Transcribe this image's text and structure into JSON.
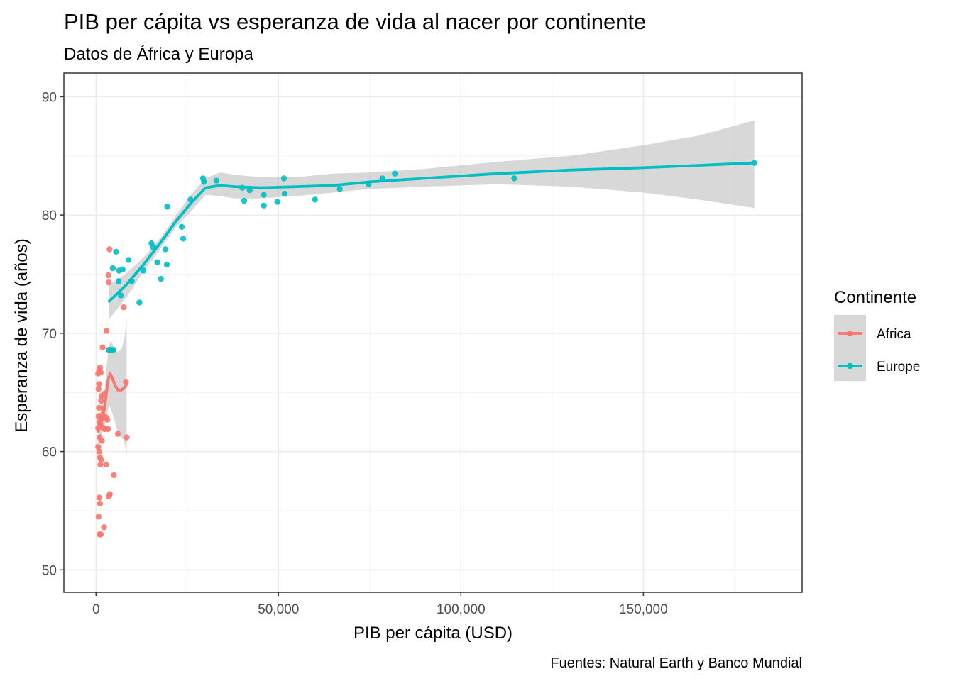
{
  "chart_data": {
    "type": "scatter",
    "title": "PIB per cápita vs esperanza de vida al nacer por continente",
    "subtitle": "Datos de África y Europa",
    "caption": "Fuentes: Natural Earth y Banco Mundial",
    "xlabel": "PIB per cápita  (USD)",
    "ylabel": "Esperanza de vida (años)",
    "xlim": [
      -8800,
      193500
    ],
    "ylim": [
      48.1,
      92
    ],
    "x_ticks": [
      0,
      50000,
      100000,
      150000
    ],
    "x_tick_labels": [
      "0",
      "50,000",
      "100,000",
      "150,000"
    ],
    "y_ticks": [
      50,
      60,
      70,
      80,
      90
    ],
    "y_tick_labels": [
      "50",
      "60",
      "70",
      "80",
      "90"
    ],
    "grid": true,
    "legend": {
      "title": "Continente",
      "placement": "right"
    },
    "colors": {
      "Africa": "#F8766D",
      "Europe": "#00BFC4",
      "band": "#bebebe"
    },
    "series": [
      {
        "name": "Africa",
        "points": [
          [
            700,
            54.5
          ],
          [
            900,
            56.1
          ],
          [
            1000,
            53
          ],
          [
            1100,
            55.6
          ],
          [
            1300,
            53
          ],
          [
            2200,
            53.6
          ],
          [
            2800,
            58.9
          ],
          [
            3500,
            56.2
          ],
          [
            3800,
            56.4
          ],
          [
            4900,
            58
          ],
          [
            600,
            60.4
          ],
          [
            900,
            60
          ],
          [
            1100,
            59.5
          ],
          [
            1200,
            58.9
          ],
          [
            1400,
            59.3
          ],
          [
            1600,
            60.9
          ],
          [
            600,
            62
          ],
          [
            700,
            63
          ],
          [
            800,
            63.7
          ],
          [
            900,
            62.5
          ],
          [
            1000,
            61.2
          ],
          [
            1200,
            62.3
          ],
          [
            1500,
            62.8
          ],
          [
            1800,
            63.1
          ],
          [
            2000,
            62
          ],
          [
            2400,
            61.9
          ],
          [
            2700,
            62.9
          ],
          [
            3100,
            62.7
          ],
          [
            3300,
            61.9
          ],
          [
            1400,
            64.3
          ],
          [
            1500,
            64.7
          ],
          [
            2000,
            63.6
          ],
          [
            2300,
            64.9
          ],
          [
            700,
            65.3
          ],
          [
            800,
            65.7
          ],
          [
            600,
            66.6
          ],
          [
            900,
            66.9
          ],
          [
            1100,
            67.1
          ],
          [
            1300,
            66.7
          ],
          [
            1800,
            68.8
          ],
          [
            2900,
            70.2
          ],
          [
            3500,
            68.6
          ],
          [
            3500,
            74.3
          ],
          [
            3400,
            74.9
          ],
          [
            3700,
            77.1
          ],
          [
            7600,
            72.2
          ],
          [
            8200,
            65.9
          ],
          [
            6000,
            61.5
          ],
          [
            8400,
            61.2
          ]
        ],
        "smooth": {
          "fit": [
            [
              600,
              61.7
            ],
            [
              1200,
              62.2
            ],
            [
              1800,
              62.9
            ],
            [
              2400,
              63.8
            ],
            [
              3000,
              65.3
            ],
            [
              3500,
              66.3
            ],
            [
              3900,
              66.6
            ],
            [
              4500,
              66.2
            ],
            [
              5200,
              65.6
            ],
            [
              6000,
              65.2
            ],
            [
              7000,
              65.2
            ],
            [
              8000,
              65.5
            ],
            [
              8400,
              65.7
            ]
          ],
          "lower": [
            [
              600,
              59.8
            ],
            [
              1200,
              61.2
            ],
            [
              1800,
              61.6
            ],
            [
              2400,
              62.2
            ],
            [
              3000,
              63.1
            ],
            [
              3500,
              63.8
            ],
            [
              4000,
              63.7
            ],
            [
              4500,
              63.2
            ],
            [
              5200,
              62.5
            ],
            [
              6000,
              61.6
            ],
            [
              6800,
              61.2
            ],
            [
              7600,
              61
            ],
            [
              8400,
              59.8
            ]
          ],
          "upper": [
            [
              600,
              63.4
            ],
            [
              1200,
              63.2
            ],
            [
              1800,
              64.2
            ],
            [
              2400,
              65.4
            ],
            [
              3000,
              67.5
            ],
            [
              3500,
              68.8
            ],
            [
              4000,
              69.4
            ],
            [
              4500,
              69.1
            ],
            [
              5200,
              68.6
            ],
            [
              6000,
              68.4
            ],
            [
              7000,
              68.7
            ],
            [
              7800,
              69.6
            ],
            [
              8400,
              71.2
            ]
          ]
        }
      },
      {
        "name": "Europe",
        "points": [
          [
            3600,
            68.6
          ],
          [
            4200,
            68.6
          ],
          [
            4800,
            68.6
          ],
          [
            4600,
            75.5
          ],
          [
            5500,
            76.9
          ],
          [
            6200,
            74.4
          ],
          [
            6300,
            75.3
          ],
          [
            6800,
            73.2
          ],
          [
            7300,
            75.4
          ],
          [
            8900,
            76.2
          ],
          [
            9800,
            74.4
          ],
          [
            11900,
            72.6
          ],
          [
            13000,
            75.3
          ],
          [
            15200,
            77.6
          ],
          [
            15600,
            77.3
          ],
          [
            16800,
            76
          ],
          [
            17800,
            74.6
          ],
          [
            19000,
            77.1
          ],
          [
            19400,
            75.8
          ],
          [
            19500,
            80.7
          ],
          [
            23900,
            78
          ],
          [
            23500,
            79
          ],
          [
            25900,
            81.3
          ],
          [
            29300,
            83.1
          ],
          [
            29600,
            82.8
          ],
          [
            33000,
            82.9
          ],
          [
            40100,
            82.3
          ],
          [
            40600,
            81.2
          ],
          [
            42100,
            82.1
          ],
          [
            46000,
            80.8
          ],
          [
            46000,
            81.7
          ],
          [
            49700,
            81.1
          ],
          [
            51500,
            83.1
          ],
          [
            51700,
            81.8
          ],
          [
            60000,
            81.3
          ],
          [
            66800,
            82.2
          ],
          [
            74700,
            82.6
          ],
          [
            78500,
            83.1
          ],
          [
            81900,
            83.5
          ],
          [
            114600,
            83.1
          ],
          [
            180400,
            84.4
          ]
        ],
        "smooth": {
          "fit": [
            [
              3600,
              72.7
            ],
            [
              8000,
              74
            ],
            [
              13000,
              75.8
            ],
            [
              18000,
              77.8
            ],
            [
              22000,
              79.5
            ],
            [
              26000,
              81
            ],
            [
              30000,
              82.3
            ],
            [
              34000,
              82.5
            ],
            [
              38000,
              82.4
            ],
            [
              45000,
              82.3
            ],
            [
              55000,
              82.4
            ],
            [
              65000,
              82.5
            ],
            [
              75000,
              82.8
            ],
            [
              90000,
              83.1
            ],
            [
              110000,
              83.5
            ],
            [
              130000,
              83.8
            ],
            [
              150000,
              84
            ],
            [
              165000,
              84.2
            ],
            [
              180400,
              84.4
            ]
          ],
          "lower": [
            [
              3600,
              71.2
            ],
            [
              8000,
              72.9
            ],
            [
              13000,
              75.2
            ],
            [
              18000,
              77.3
            ],
            [
              22000,
              79
            ],
            [
              26000,
              80.3
            ],
            [
              30000,
              81.7
            ],
            [
              34000,
              81.6
            ],
            [
              38000,
              81.4
            ],
            [
              45000,
              81.4
            ],
            [
              55000,
              81.6
            ],
            [
              65000,
              81.9
            ],
            [
              75000,
              82.2
            ],
            [
              90000,
              82.4
            ],
            [
              110000,
              82.6
            ],
            [
              130000,
              82.4
            ],
            [
              150000,
              81.9
            ],
            [
              165000,
              81.3
            ],
            [
              180400,
              80.6
            ]
          ],
          "upper": [
            [
              3600,
              74.1
            ],
            [
              8000,
              75
            ],
            [
              13000,
              76.4
            ],
            [
              18000,
              78.2
            ],
            [
              22000,
              80
            ],
            [
              26000,
              81.7
            ],
            [
              30000,
              83.1
            ],
            [
              34000,
              83.6
            ],
            [
              38000,
              83.4
            ],
            [
              45000,
              83.2
            ],
            [
              55000,
              83.2
            ],
            [
              65000,
              83.5
            ],
            [
              75000,
              83.6
            ],
            [
              90000,
              83.9
            ],
            [
              110000,
              84.5
            ],
            [
              130000,
              85
            ],
            [
              150000,
              85.9
            ],
            [
              165000,
              86.7
            ],
            [
              180400,
              88
            ]
          ]
        }
      }
    ]
  }
}
